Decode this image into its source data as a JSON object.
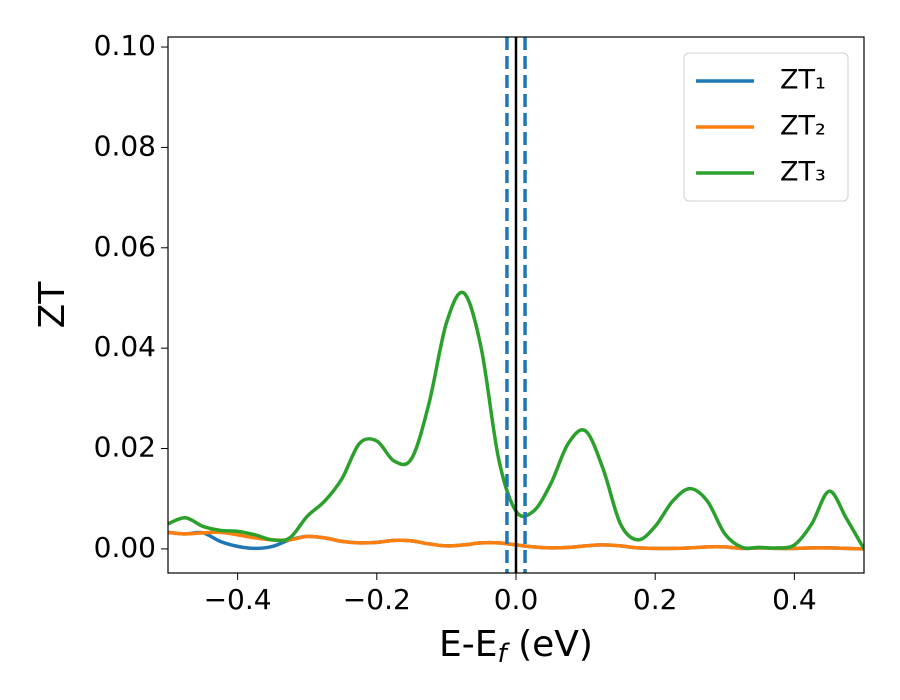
{
  "chart_data": {
    "type": "line",
    "xlabel": "E-Ef (eV)",
    "ylabel": "ZT",
    "x": [
      -0.5,
      -0.475,
      -0.45,
      -0.425,
      -0.4,
      -0.375,
      -0.35,
      -0.325,
      -0.3,
      -0.275,
      -0.25,
      -0.225,
      -0.2,
      -0.175,
      -0.15,
      -0.125,
      -0.1,
      -0.075,
      -0.05,
      -0.025,
      0,
      0.025,
      0.05,
      0.075,
      0.1,
      0.125,
      0.15,
      0.175,
      0.2,
      0.225,
      0.25,
      0.275,
      0.3,
      0.325,
      0.35,
      0.375,
      0.4,
      0.425,
      0.45,
      0.475,
      0.5
    ],
    "series": [
      {
        "name": "ZT₁",
        "color": "#1f77b4",
        "values": [
          0.0033,
          0.003,
          0.0032,
          0.0015,
          0.0005,
          0.0001,
          0.0005,
          0.0018,
          0.0025,
          0.0022,
          0.0015,
          0.0012,
          0.0013,
          0.0017,
          0.0016,
          0.001,
          0.0006,
          0.0008,
          0.0012,
          0.0012,
          0.0008,
          0.0004,
          0.0002,
          0.0003,
          0.0006,
          0.0008,
          0.0006,
          0.0002,
          0.0001,
          0.0001,
          0.0002,
          0.0004,
          0.0004,
          0.0001,
          0.0002,
          0.0001,
          0.0001,
          0.0002,
          0.0002,
          0.0001,
          0.0
        ]
      },
      {
        "name": "ZT₂",
        "color": "#ff7f0e",
        "values": [
          0.0033,
          0.003,
          0.0032,
          0.0033,
          0.0028,
          0.0022,
          0.0018,
          0.0018,
          0.0025,
          0.0022,
          0.0015,
          0.0012,
          0.0013,
          0.0017,
          0.0016,
          0.001,
          0.0006,
          0.0008,
          0.0012,
          0.0012,
          0.0008,
          0.0004,
          0.0002,
          0.0003,
          0.0006,
          0.0008,
          0.0006,
          0.0002,
          0.0001,
          0.0001,
          0.0002,
          0.0004,
          0.0004,
          0.0001,
          0.0002,
          0.0001,
          0.0001,
          0.0002,
          0.0002,
          0.0001,
          0.0
        ]
      },
      {
        "name": "ZT₃",
        "color": "#2ca02c",
        "values": [
          0.005,
          0.0062,
          0.0045,
          0.0037,
          0.0035,
          0.0028,
          0.0018,
          0.0022,
          0.0065,
          0.0095,
          0.014,
          0.021,
          0.0215,
          0.0175,
          0.018,
          0.029,
          0.045,
          0.051,
          0.04,
          0.018,
          0.0075,
          0.0075,
          0.013,
          0.021,
          0.0235,
          0.016,
          0.005,
          0.0018,
          0.0045,
          0.0095,
          0.012,
          0.0095,
          0.003,
          0.0003,
          0.0003,
          0.0002,
          0.0008,
          0.005,
          0.0115,
          0.006,
          0.0
        ]
      }
    ],
    "vlines": [
      {
        "x": -0.013,
        "color": "#1f77b4",
        "style": "dashed"
      },
      {
        "x": 0.013,
        "color": "#1f77b4",
        "style": "dashed"
      },
      {
        "x": 0,
        "color": "#000000",
        "style": "solid"
      }
    ],
    "xlim": [
      -0.5,
      0.5
    ],
    "xticks": [
      {
        "value": -0.4,
        "label": "−0.4"
      },
      {
        "value": -0.2,
        "label": "−0.2"
      },
      {
        "value": 0,
        "label": "0.0"
      },
      0.2,
      0.4
    ],
    "ylim": [
      -0.0048,
      0.102
    ],
    "yticks": [
      {
        "value": 0,
        "label": "0.00"
      },
      {
        "value": 0.02,
        "label": "0.02"
      },
      {
        "value": 0.04,
        "label": "0.04"
      },
      {
        "value": 0.06,
        "label": "0.06"
      },
      {
        "value": 0.08,
        "label": "0.08"
      },
      {
        "value": 0.1,
        "label": "0.10"
      }
    ],
    "legend": "upper right",
    "grid": false
  }
}
